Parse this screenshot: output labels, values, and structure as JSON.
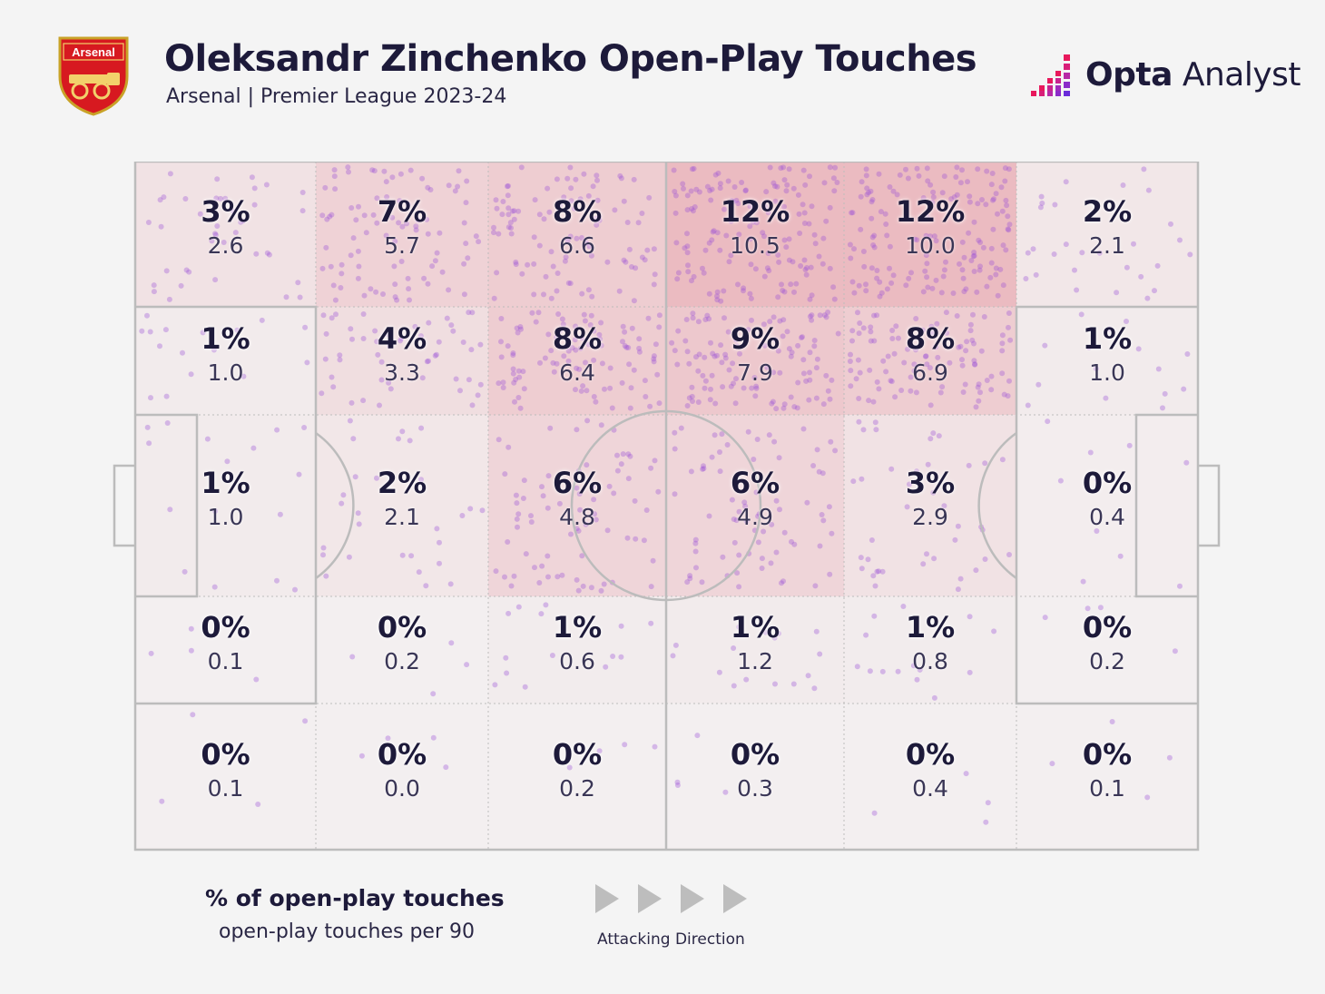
{
  "header": {
    "title": "Oleksandr Zinchenko Open-Play Touches",
    "subtitle": "Arsenal | Premier League 2023-24",
    "club_crest_text": "Arsenal",
    "brand_bold": "Opta",
    "brand_light": " Analyst"
  },
  "legend": {
    "pct_label": "% of open-play touches",
    "rate_label": "open-play touches per 90",
    "direction_label": "Attacking Direction"
  },
  "colors": {
    "background": "#f4f4f4",
    "heat": "#e06a7a",
    "dot": "#9b4fd6",
    "line": "#bcbcbc",
    "text": "#1d1a3a",
    "crest_red": "#d71920",
    "crest_gold": "#c9a227",
    "brand_pink": "#e8185c",
    "brand_purple": "#6a2bd9"
  },
  "chart_data": {
    "type": "heatmap",
    "title": "Oleksandr Zinchenko Open-Play Touches",
    "subtitle": "Arsenal | Premier League 2023-24",
    "value_labels": [
      "% of open-play touches",
      "open-play touches per 90"
    ],
    "grid": {
      "rows": 5,
      "cols": 6
    },
    "cells": [
      [
        {
          "pct": "3%",
          "per90": "2.6",
          "v": 3
        },
        {
          "pct": "7%",
          "per90": "5.7",
          "v": 7
        },
        {
          "pct": "8%",
          "per90": "6.6",
          "v": 8
        },
        {
          "pct": "12%",
          "per90": "10.5",
          "v": 12
        },
        {
          "pct": "12%",
          "per90": "10.0",
          "v": 12
        },
        {
          "pct": "2%",
          "per90": "2.1",
          "v": 2
        }
      ],
      [
        {
          "pct": "1%",
          "per90": "1.0",
          "v": 1
        },
        {
          "pct": "4%",
          "per90": "3.3",
          "v": 4
        },
        {
          "pct": "8%",
          "per90": "6.4",
          "v": 8
        },
        {
          "pct": "9%",
          "per90": "7.9",
          "v": 9
        },
        {
          "pct": "8%",
          "per90": "6.9",
          "v": 8
        },
        {
          "pct": "1%",
          "per90": "1.0",
          "v": 1
        }
      ],
      [
        {
          "pct": "1%",
          "per90": "1.0",
          "v": 1
        },
        {
          "pct": "2%",
          "per90": "2.1",
          "v": 2
        },
        {
          "pct": "6%",
          "per90": "4.8",
          "v": 6
        },
        {
          "pct": "6%",
          "per90": "4.9",
          "v": 6
        },
        {
          "pct": "3%",
          "per90": "2.9",
          "v": 3
        },
        {
          "pct": "0%",
          "per90": "0.4",
          "v": 0.5
        }
      ],
      [
        {
          "pct": "0%",
          "per90": "0.1",
          "v": 0
        },
        {
          "pct": "0%",
          "per90": "0.2",
          "v": 0
        },
        {
          "pct": "1%",
          "per90": "0.6",
          "v": 0.8
        },
        {
          "pct": "1%",
          "per90": "1.2",
          "v": 1
        },
        {
          "pct": "1%",
          "per90": "0.8",
          "v": 0.8
        },
        {
          "pct": "0%",
          "per90": "0.2",
          "v": 0
        }
      ],
      [
        {
          "pct": "0%",
          "per90": "0.1",
          "v": 0
        },
        {
          "pct": "0%",
          "per90": "0.0",
          "v": 0
        },
        {
          "pct": "0%",
          "per90": "0.2",
          "v": 0
        },
        {
          "pct": "0%",
          "per90": "0.3",
          "v": 0
        },
        {
          "pct": "0%",
          "per90": "0.4",
          "v": 0
        },
        {
          "pct": "0%",
          "per90": "0.1",
          "v": 0
        }
      ]
    ],
    "attacking_direction": "left-to-right",
    "legend_placement": "bottom"
  }
}
